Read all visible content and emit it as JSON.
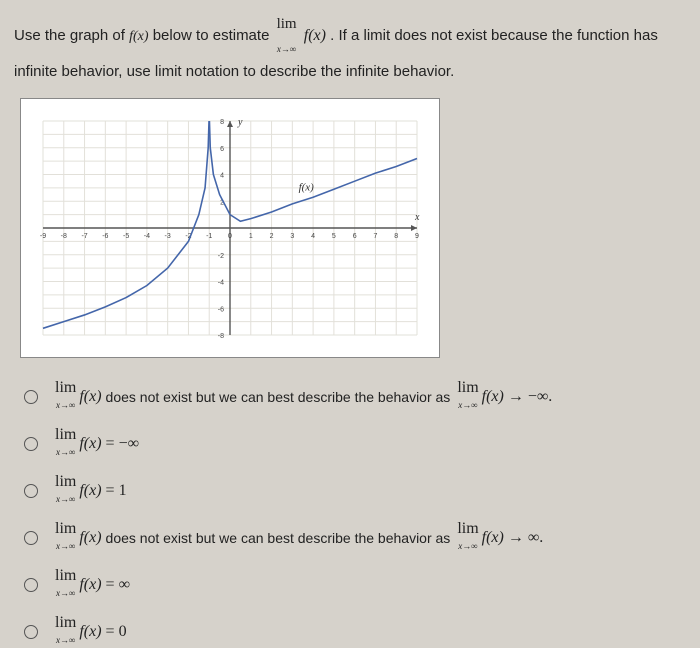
{
  "question": {
    "line1_a": "Use the graph of ",
    "line1_b": "f(x)",
    "line1_c": " below to estimate ",
    "lim_word": "lim",
    "lim_sub": "x→∞",
    "lim_fx": "f(x)",
    "line1_d": ". If a limit does not exist because the function has",
    "line2": "infinite behavior, use limit notation to describe the infinite behavior."
  },
  "graph": {
    "x_min": -9,
    "x_max": 9,
    "y_min": -8,
    "y_max": 8,
    "x_ticks": [
      -9,
      -8,
      -7,
      -6,
      -5,
      -4,
      -3,
      -2,
      -1,
      0,
      1,
      2,
      3,
      4,
      5,
      6,
      7,
      8,
      9
    ],
    "y_ticks": [
      -8,
      -6,
      -4,
      -2,
      0,
      2,
      4,
      6,
      8
    ],
    "y_label": "y",
    "x_label": "x",
    "curve_label": "f(x)",
    "grid_color": "#e2e0d9",
    "axis_color": "#555",
    "curve_color": "#4466aa",
    "curve_points": [
      [
        -9,
        -7.5
      ],
      [
        -8,
        -7.0
      ],
      [
        -7,
        -6.5
      ],
      [
        -6,
        -5.9
      ],
      [
        -5,
        -5.2
      ],
      [
        -4,
        -4.3
      ],
      [
        -3,
        -3.0
      ],
      [
        -2,
        -1.0
      ],
      [
        -1.5,
        1.0
      ],
      [
        -1.2,
        3.0
      ],
      [
        -1.05,
        6.0
      ],
      [
        -1.01,
        8.0
      ],
      [
        -0.99,
        8.0
      ],
      [
        -0.95,
        6.0
      ],
      [
        -0.8,
        4.0
      ],
      [
        -0.5,
        2.5
      ],
      [
        0,
        1.0
      ],
      [
        0.5,
        0.5
      ],
      [
        1,
        0.7
      ],
      [
        2,
        1.2
      ],
      [
        3,
        1.8
      ],
      [
        4,
        2.3
      ],
      [
        5,
        2.9
      ],
      [
        6,
        3.5
      ],
      [
        7,
        4.1
      ],
      [
        8,
        4.6
      ],
      [
        9,
        5.2
      ]
    ],
    "asymptote_x": -1
  },
  "options": [
    {
      "kind": "text",
      "pre": "",
      "txt": " does not exist but we can best describe the behavior as ",
      "tail": " → −∞."
    },
    {
      "kind": "eq",
      "rhs": "= −∞"
    },
    {
      "kind": "eq",
      "rhs": "= 1"
    },
    {
      "kind": "text",
      "pre": "",
      "txt": " does not exist but we can best describe the behavior as ",
      "tail": " → ∞."
    },
    {
      "kind": "eq",
      "rhs": "= ∞"
    },
    {
      "kind": "eq",
      "rhs": "= 0"
    }
  ],
  "shared": {
    "lim": "lim",
    "sub": "x→∞",
    "fx": "f(x)"
  }
}
